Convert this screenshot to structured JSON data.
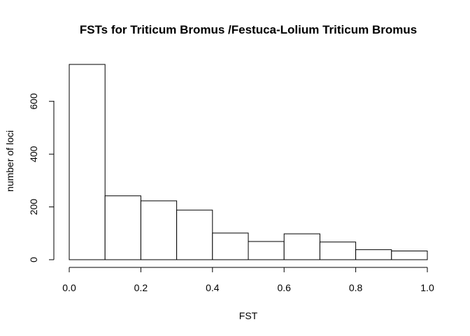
{
  "chart_data": {
    "type": "bar",
    "title": "FSTs for Triticum Bromus /Festuca-Lolium Triticum Bromus",
    "xlabel": "FST",
    "ylabel": "number of loci",
    "bins": [
      {
        "x0": 0.0,
        "x1": 0.1,
        "count": 740
      },
      {
        "x0": 0.1,
        "x1": 0.2,
        "count": 242
      },
      {
        "x0": 0.2,
        "x1": 0.3,
        "count": 223
      },
      {
        "x0": 0.3,
        "x1": 0.4,
        "count": 188
      },
      {
        "x0": 0.4,
        "x1": 0.5,
        "count": 101
      },
      {
        "x0": 0.5,
        "x1": 0.6,
        "count": 69
      },
      {
        "x0": 0.6,
        "x1": 0.7,
        "count": 98
      },
      {
        "x0": 0.7,
        "x1": 0.8,
        "count": 67
      },
      {
        "x0": 0.8,
        "x1": 0.9,
        "count": 38
      },
      {
        "x0": 0.9,
        "x1": 1.0,
        "count": 33
      }
    ],
    "xlim": [
      0.0,
      1.0
    ],
    "ylim": [
      0,
      740
    ],
    "xticks": [
      "0.0",
      "0.2",
      "0.4",
      "0.6",
      "0.8",
      "1.0"
    ],
    "yticks": [
      "0",
      "200",
      "400",
      "600"
    ],
    "grid": false,
    "legend": "none"
  }
}
